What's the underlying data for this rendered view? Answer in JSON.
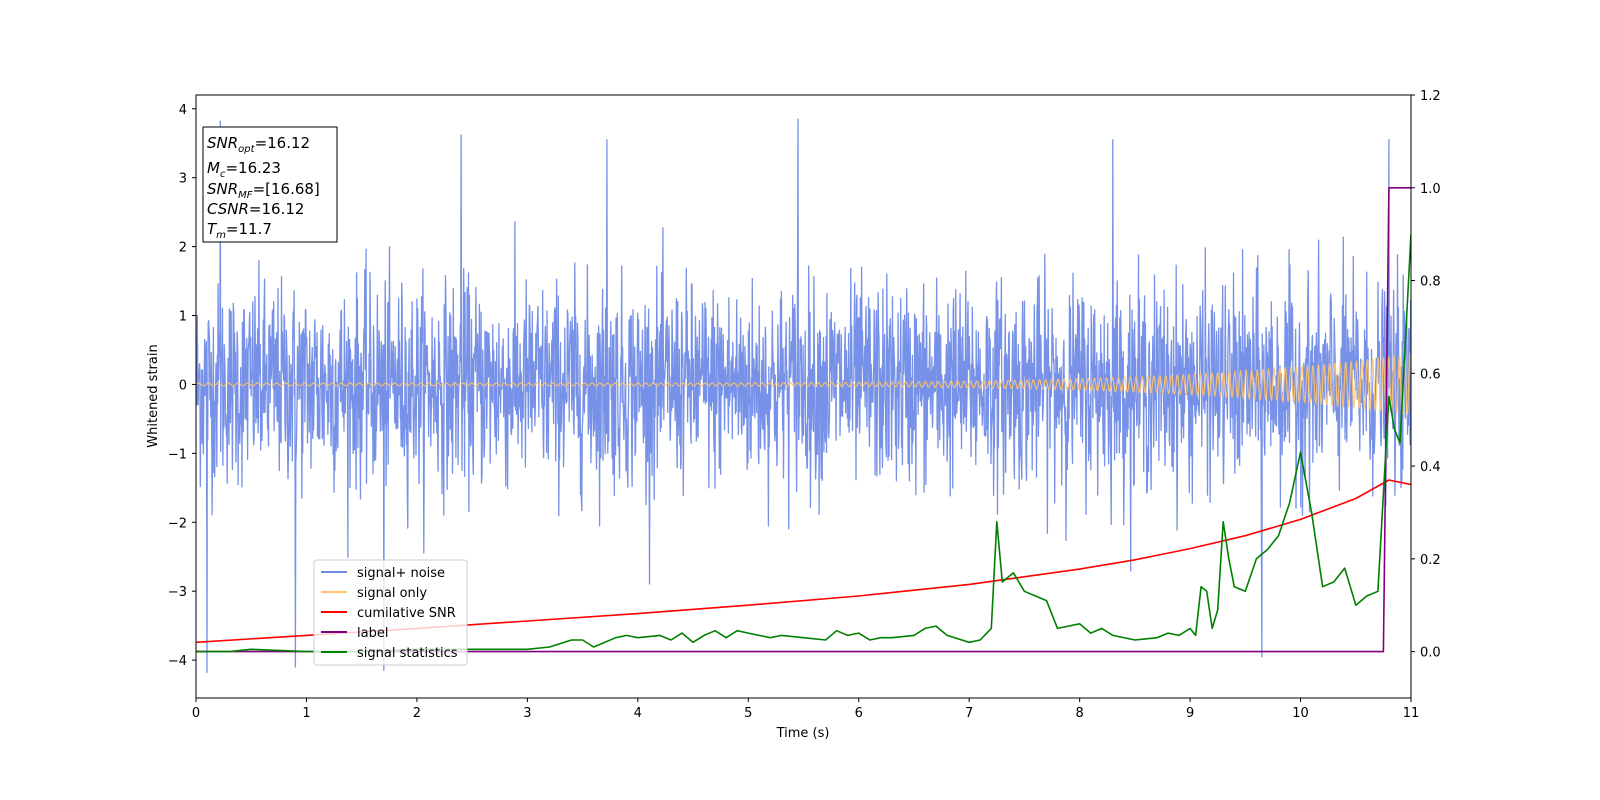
{
  "chart_data": {
    "type": "line",
    "title": "",
    "xlabel": "Time (s)",
    "ylabel": "Whitened strain",
    "ylabel_right": "",
    "xlim": [
      0,
      11
    ],
    "ylim_left": [
      -4.55,
      4.2
    ],
    "ylim_right": [
      -0.1,
      1.2
    ],
    "x_ticks": [
      0,
      1,
      2,
      3,
      4,
      5,
      6,
      7,
      8,
      9,
      10,
      11
    ],
    "y_ticks_left": [
      4,
      3,
      2,
      1,
      0,
      -1,
      -2,
      -3,
      -4
    ],
    "y_ticks_right": [
      1.2,
      1.0,
      0.8,
      0.6,
      0.4,
      0.2,
      0.0
    ],
    "grid": false,
    "legend_position": "lower-left",
    "stats_box": {
      "lines": [
        {
          "base": "SNR",
          "sub": "opt",
          "rest": "=16.12"
        },
        {
          "base": "M",
          "sub": "c",
          "rest": "=16.23"
        },
        {
          "base": "SNR",
          "sub": "MF",
          "rest": "=[16.68]"
        },
        {
          "base": "CSNR",
          "sub": "",
          "rest": "=16.12"
        },
        {
          "base": "T",
          "sub": "m",
          "rest": "=11.7"
        }
      ]
    },
    "series": [
      {
        "name": "signal+ noise",
        "axis": "left",
        "color": "#6f8be6",
        "style": "noise",
        "sigma": 0.72,
        "peaks_high": [
          [
            0.22,
            3.82
          ],
          [
            2.4,
            3.62
          ],
          [
            3.72,
            3.55
          ],
          [
            5.45,
            3.85
          ],
          [
            8.3,
            3.55
          ],
          [
            10.8,
            3.55
          ]
        ],
        "peaks_low": [
          [
            0.1,
            -4.18
          ],
          [
            1.7,
            -4.15
          ],
          [
            9.65,
            -3.95
          ],
          [
            0.9,
            -4.1
          ]
        ]
      },
      {
        "name": "signal only",
        "axis": "left",
        "color": "#ffc36a",
        "style": "chirp",
        "amplitude_start": 0.02,
        "amplitude_end": 0.45
      },
      {
        "name": "cumilative SNR",
        "axis": "right",
        "color": "#ff0000",
        "x": [
          0,
          1,
          2,
          3,
          4,
          5,
          6,
          7,
          8,
          8.5,
          9,
          9.5,
          10,
          10.5,
          10.8,
          11
        ],
        "y": [
          0.02,
          0.035,
          0.05,
          0.066,
          0.082,
          0.1,
          0.12,
          0.145,
          0.178,
          0.198,
          0.222,
          0.25,
          0.285,
          0.33,
          0.37,
          0.36
        ]
      },
      {
        "name": "label",
        "axis": "right",
        "color": "#800080",
        "x": [
          0,
          10.75,
          10.8,
          11
        ],
        "y": [
          0,
          0,
          1,
          1
        ]
      },
      {
        "name": "signal statistics",
        "axis": "right",
        "color": "#008000",
        "x": [
          0,
          0.3,
          0.5,
          1,
          1.5,
          2,
          2.5,
          3,
          3.2,
          3.4,
          3.5,
          3.6,
          3.8,
          3.9,
          4.0,
          4.2,
          4.3,
          4.4,
          4.5,
          4.6,
          4.7,
          4.8,
          4.9,
          5.0,
          5.2,
          5.3,
          5.5,
          5.7,
          5.8,
          5.9,
          6.0,
          6.1,
          6.2,
          6.3,
          6.5,
          6.6,
          6.7,
          6.8,
          7.0,
          7.1,
          7.2,
          7.25,
          7.3,
          7.4,
          7.5,
          7.6,
          7.7,
          7.8,
          8.0,
          8.1,
          8.2,
          8.3,
          8.5,
          8.7,
          8.8,
          8.9,
          9.0,
          9.05,
          9.1,
          9.15,
          9.2,
          9.25,
          9.3,
          9.35,
          9.4,
          9.5,
          9.6,
          9.7,
          9.8,
          9.9,
          10.0,
          10.1,
          10.2,
          10.3,
          10.4,
          10.5,
          10.6,
          10.7,
          10.8,
          10.85,
          10.9,
          11.0
        ],
        "y": [
          0,
          0.0,
          0.005,
          0.0,
          0.0,
          0.005,
          0.005,
          0.005,
          0.01,
          0.025,
          0.025,
          0.01,
          0.03,
          0.035,
          0.03,
          0.035,
          0.025,
          0.04,
          0.02,
          0.035,
          0.045,
          0.03,
          0.045,
          0.04,
          0.03,
          0.035,
          0.03,
          0.025,
          0.045,
          0.035,
          0.04,
          0.025,
          0.03,
          0.03,
          0.035,
          0.05,
          0.055,
          0.035,
          0.02,
          0.025,
          0.05,
          0.28,
          0.15,
          0.17,
          0.13,
          0.12,
          0.11,
          0.05,
          0.06,
          0.04,
          0.05,
          0.035,
          0.025,
          0.03,
          0.04,
          0.035,
          0.05,
          0.035,
          0.14,
          0.13,
          0.05,
          0.09,
          0.28,
          0.2,
          0.14,
          0.13,
          0.2,
          0.22,
          0.25,
          0.32,
          0.43,
          0.3,
          0.14,
          0.15,
          0.18,
          0.1,
          0.12,
          0.13,
          0.55,
          0.48,
          0.45,
          0.9
        ]
      }
    ]
  }
}
